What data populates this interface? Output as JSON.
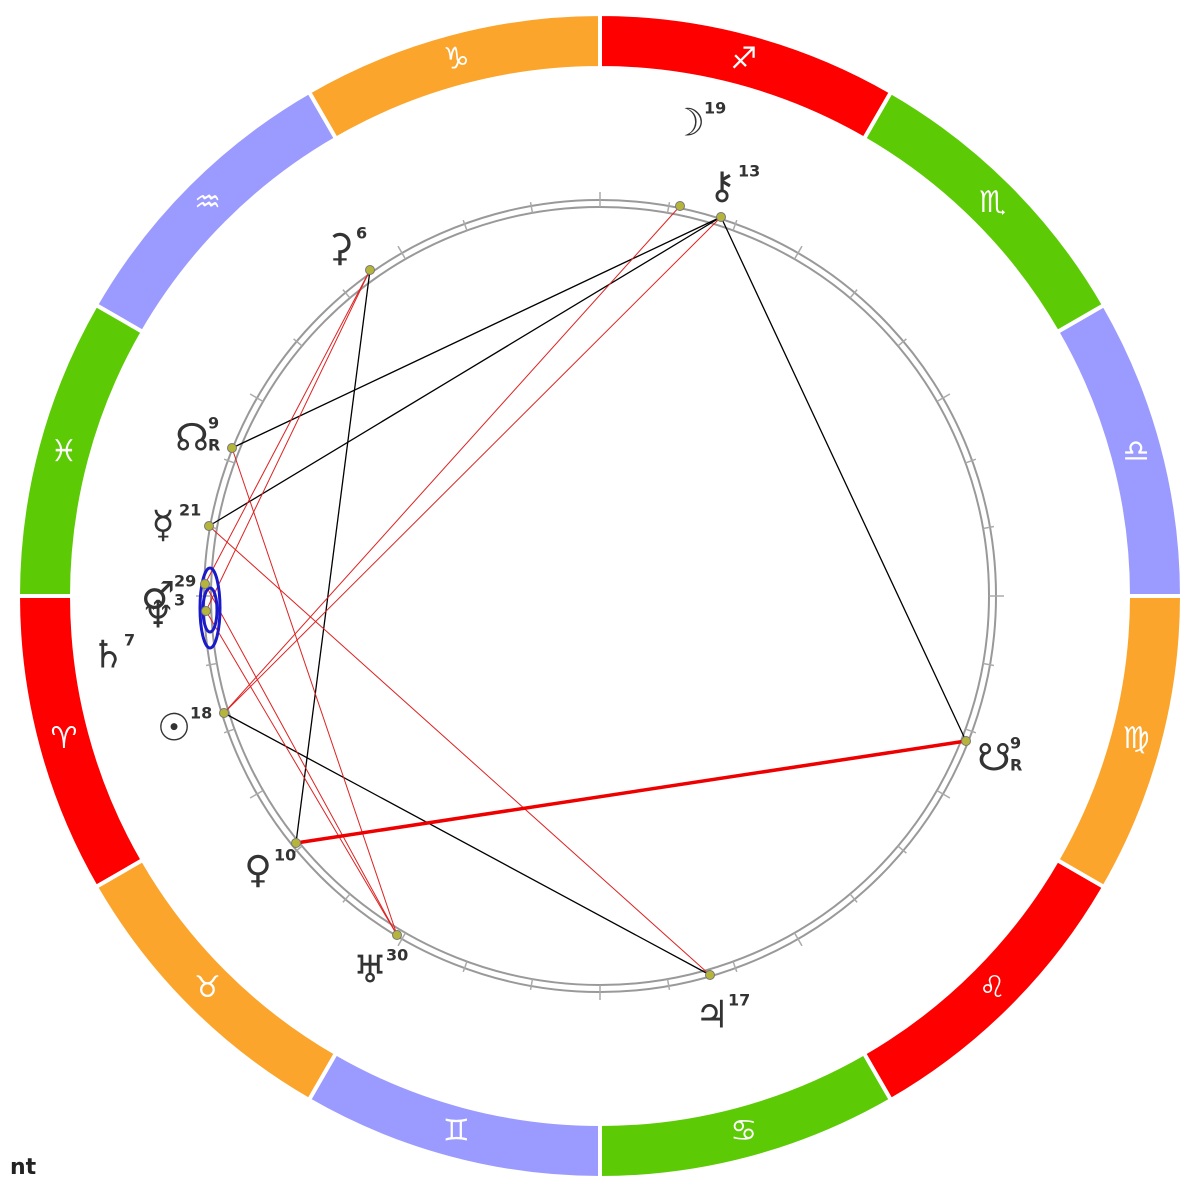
{
  "zodiac": [
    {
      "glyph": "♑"
    },
    {
      "glyph": "♒"
    },
    {
      "glyph": "♓"
    },
    {
      "glyph": "♈"
    },
    {
      "glyph": "♉"
    },
    {
      "glyph": "♊"
    },
    {
      "glyph": "♋"
    },
    {
      "glyph": "♌"
    },
    {
      "glyph": "♍"
    },
    {
      "glyph": "♎"
    },
    {
      "glyph": "♏"
    },
    {
      "glyph": "♐"
    }
  ],
  "planets": [
    {
      "glyph": "☽",
      "degree": "19"
    },
    {
      "glyph": "⚷",
      "degree": "13"
    },
    {
      "glyph": "⚳",
      "degree": "6"
    },
    {
      "glyph": "☊",
      "degree": "9",
      "retro": "R"
    },
    {
      "glyph": "☿",
      "degree": "21"
    },
    {
      "glyph": "♂",
      "degree": "29"
    },
    {
      "glyph": "♆",
      "degree": "3"
    },
    {
      "glyph": "♄",
      "degree": "7"
    },
    {
      "glyph": "☉",
      "degree": "18"
    },
    {
      "glyph": "♀",
      "degree": "10"
    },
    {
      "glyph": "♅",
      "degree": "30"
    },
    {
      "glyph": "♃",
      "degree": "17"
    },
    {
      "glyph": "☋",
      "degree": "9",
      "retro": "R"
    }
  ],
  "footer": "nt"
}
